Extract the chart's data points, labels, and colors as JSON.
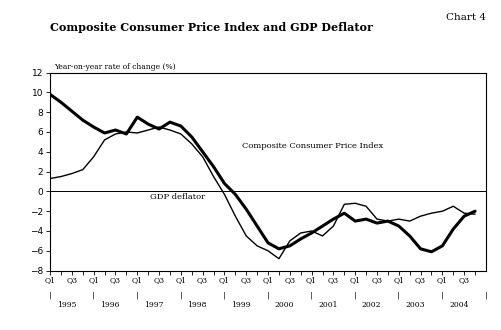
{
  "title": "Composite Consumer Price Index and GDP Deflator",
  "chart_label": "Chart 4",
  "ylabel": "Year-on-year rate of change (%)",
  "ylim": [
    -8,
    12
  ],
  "yticks": [
    -8,
    -6,
    -4,
    -2,
    0,
    2,
    4,
    6,
    8,
    10,
    12
  ],
  "years": [
    1995,
    1996,
    1997,
    1998,
    1999,
    2000,
    2001,
    2002,
    2003,
    2004
  ],
  "cpi_label": "Composite Consumer Price Index",
  "gdp_label": "GDP deflator",
  "cpi_data": [
    9.8,
    9.0,
    8.1,
    7.2,
    6.5,
    5.9,
    6.2,
    5.8,
    7.5,
    6.8,
    6.3,
    7.0,
    6.6,
    5.5,
    4.0,
    2.5,
    0.8,
    -0.3,
    -1.8,
    -3.5,
    -5.2,
    -5.8,
    -5.5,
    -4.8,
    -4.2,
    -3.5,
    -2.8,
    -2.2,
    -3.0,
    -2.8,
    -3.2,
    -3.0,
    -3.5,
    -4.5,
    -5.8,
    -6.1,
    -5.5,
    -3.8,
    -2.5,
    -2.0
  ],
  "gdp_data": [
    1.3,
    1.5,
    1.8,
    2.2,
    3.5,
    5.2,
    5.8,
    6.0,
    5.9,
    6.2,
    6.5,
    6.2,
    5.8,
    4.8,
    3.5,
    1.5,
    -0.3,
    -2.5,
    -4.5,
    -5.5,
    -6.0,
    -6.8,
    -5.0,
    -4.2,
    -4.0,
    -4.5,
    -3.5,
    -1.3,
    -1.2,
    -1.5,
    -2.8,
    -3.0,
    -2.8,
    -3.0,
    -2.5,
    -2.2,
    -2.0,
    -1.5,
    -2.2,
    -2.3
  ],
  "background_color": "#ffffff",
  "line_color_cpi": "#000000",
  "line_color_gdp": "#000000",
  "cpi_linewidth": 2.2,
  "gdp_linewidth": 1.0
}
